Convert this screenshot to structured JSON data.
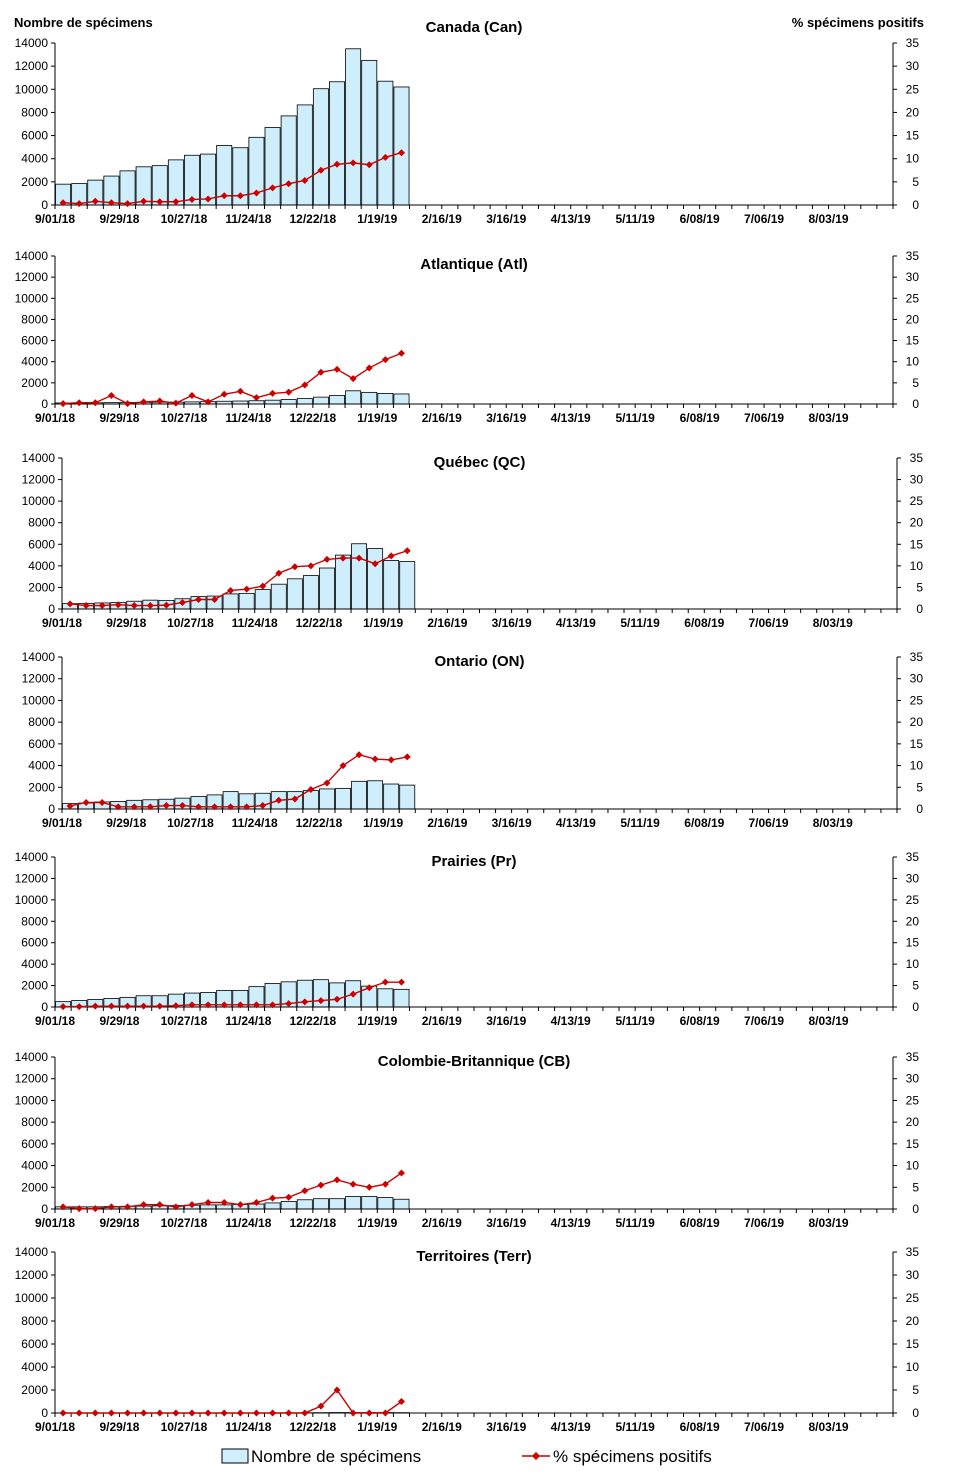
{
  "left_axis_label": "Nombre de spécimens",
  "right_axis_label": "% spécimens positifs",
  "legend": {
    "bars_label": "Nombre de spécimens",
    "line_label": "% spécimens positifs"
  },
  "colors": {
    "bar_fill": "#cfeefc",
    "bar_stroke": "#000000",
    "line": "#cc0000"
  },
  "chart_data": [
    {
      "type": "bar",
      "title": "Canada (Can)",
      "x_tick_labels": [
        "9/01/18",
        "9/29/18",
        "10/27/18",
        "11/24/18",
        "12/22/18",
        "1/19/19",
        "2/16/19",
        "3/16/19",
        "4/13/19",
        "5/11/19",
        "6/08/19",
        "7/06/19",
        "8/03/19"
      ],
      "y_ticks": [
        0,
        2000,
        4000,
        6000,
        8000,
        10000,
        12000,
        14000
      ],
      "y2_ticks": [
        0,
        5,
        10,
        15,
        20,
        25,
        30,
        35
      ],
      "ylim": [
        0,
        14000
      ],
      "y2lim": [
        0,
        35
      ],
      "weeks": 52,
      "series": [
        {
          "name": "Nombre de spécimens",
          "values": [
            1800,
            1850,
            2150,
            2500,
            2950,
            3300,
            3400,
            3900,
            4300,
            4400,
            5150,
            4950,
            5850,
            6700,
            7700,
            8650,
            10050,
            10650,
            13500,
            12500,
            10700,
            10200
          ]
        },
        {
          "name": "% spécimens positifs",
          "values": [
            0.5,
            0.3,
            0.8,
            0.5,
            0.3,
            0.8,
            0.7,
            0.7,
            1.2,
            1.3,
            2.0,
            2.0,
            2.6,
            3.7,
            4.6,
            5.3,
            7.5,
            8.8,
            9.1,
            8.7,
            10.3,
            11.3
          ]
        }
      ]
    },
    {
      "type": "bar",
      "title": "Atlantique (Atl)",
      "x_tick_labels": [
        "9/01/18",
        "9/29/18",
        "10/27/18",
        "11/24/18",
        "12/22/18",
        "1/19/19",
        "2/16/19",
        "3/16/19",
        "4/13/19",
        "5/11/19",
        "6/08/19",
        "7/06/19",
        "8/03/19"
      ],
      "y_ticks": [
        0,
        2000,
        4000,
        6000,
        8000,
        10000,
        12000,
        14000
      ],
      "y2_ticks": [
        0,
        5,
        10,
        15,
        20,
        25,
        30,
        35
      ],
      "ylim": [
        0,
        14000
      ],
      "y2lim": [
        0,
        35
      ],
      "weeks": 52,
      "series": [
        {
          "name": "Nombre de spécimens",
          "values": [
            100,
            110,
            120,
            130,
            150,
            160,
            170,
            180,
            200,
            220,
            260,
            280,
            310,
            360,
            420,
            520,
            650,
            800,
            1250,
            1100,
            1000,
            950
          ]
        },
        {
          "name": "% spécimens positifs",
          "values": [
            0.1,
            0.3,
            0.3,
            2.0,
            0.1,
            0.5,
            0.7,
            0.2,
            2.0,
            0.5,
            2.3,
            3.0,
            1.5,
            2.5,
            2.8,
            4.5,
            7.5,
            8.2,
            6.0,
            8.5,
            10.5,
            12.0
          ]
        }
      ]
    },
    {
      "type": "bar",
      "title": "Québec (QC)",
      "x_tick_labels": [
        "9/01/18",
        "9/29/18",
        "10/27/18",
        "11/24/18",
        "12/22/18",
        "1/19/19",
        "2/16/19",
        "3/16/19",
        "4/13/19",
        "5/11/19",
        "6/08/19",
        "7/06/19",
        "8/03/19"
      ],
      "y_ticks": [
        0,
        2000,
        4000,
        6000,
        8000,
        10000,
        12000,
        14000
      ],
      "y2_ticks": [
        0,
        5,
        10,
        15,
        20,
        25,
        30,
        35
      ],
      "ylim": [
        0,
        14000
      ],
      "y2lim": [
        0,
        35
      ],
      "weeks": 52,
      "series": [
        {
          "name": "Nombre de spécimens",
          "values": [
            500,
            520,
            560,
            600,
            720,
            820,
            800,
            950,
            1150,
            1200,
            1400,
            1450,
            1800,
            2300,
            2800,
            3100,
            3800,
            5000,
            6050,
            5600,
            4500,
            4400
          ]
        },
        {
          "name": "% spécimens positifs",
          "values": [
            1.2,
            0.8,
            0.8,
            1.0,
            0.8,
            0.8,
            0.9,
            1.5,
            2.2,
            2.2,
            4.3,
            4.6,
            5.3,
            8.3,
            9.8,
            10.0,
            11.5,
            11.8,
            11.8,
            10.5,
            12.3,
            13.5
          ]
        }
      ]
    },
    {
      "type": "bar",
      "title": "Ontario (ON)",
      "x_tick_labels": [
        "9/01/18",
        "9/29/18",
        "10/27/18",
        "11/24/18",
        "12/22/18",
        "1/19/19",
        "2/16/19",
        "3/16/19",
        "4/13/19",
        "5/11/19",
        "6/08/19",
        "7/06/19",
        "8/03/19"
      ],
      "y_ticks": [
        0,
        2000,
        4000,
        6000,
        8000,
        10000,
        12000,
        14000
      ],
      "y2_ticks": [
        0,
        5,
        10,
        15,
        20,
        25,
        30,
        35
      ],
      "ylim": [
        0,
        14000
      ],
      "y2lim": [
        0,
        35
      ],
      "weeks": 52,
      "series": [
        {
          "name": "Nombre de spécimens",
          "values": [
            500,
            550,
            650,
            700,
            800,
            850,
            900,
            1000,
            1150,
            1300,
            1600,
            1400,
            1450,
            1600,
            1600,
            1700,
            1850,
            1900,
            2550,
            2600,
            2300,
            2200
          ]
        },
        {
          "name": "% spécimens positifs",
          "values": [
            0.7,
            1.5,
            1.5,
            0.5,
            0.5,
            0.5,
            0.8,
            0.8,
            0.5,
            0.5,
            0.5,
            0.5,
            0.8,
            2.0,
            2.3,
            4.5,
            6.0,
            10.0,
            12.5,
            11.5,
            11.3,
            12.0
          ]
        }
      ]
    },
    {
      "type": "bar",
      "title": "Prairies (Pr)",
      "x_tick_labels": [
        "9/01/18",
        "9/29/18",
        "10/27/18",
        "11/24/18",
        "12/22/18",
        "1/19/19",
        "2/16/19",
        "3/16/19",
        "4/13/19",
        "5/11/19",
        "6/08/19",
        "7/06/19",
        "8/03/19"
      ],
      "y_ticks": [
        0,
        2000,
        4000,
        6000,
        8000,
        10000,
        12000,
        14000
      ],
      "y2_ticks": [
        0,
        5,
        10,
        15,
        20,
        25,
        30,
        35
      ],
      "ylim": [
        0,
        14000
      ],
      "y2lim": [
        0,
        35
      ],
      "weeks": 52,
      "series": [
        {
          "name": "Nombre de spécimens",
          "values": [
            500,
            600,
            700,
            800,
            900,
            1050,
            1050,
            1200,
            1300,
            1350,
            1550,
            1550,
            1900,
            2200,
            2350,
            2500,
            2550,
            2250,
            2450,
            1950,
            1700,
            1650
          ]
        },
        {
          "name": "% spécimens positifs",
          "values": [
            0.1,
            0.1,
            0.2,
            0.2,
            0.2,
            0.2,
            0.2,
            0.3,
            0.5,
            0.5,
            0.5,
            0.5,
            0.5,
            0.5,
            0.8,
            1.2,
            1.5,
            1.8,
            3.0,
            4.5,
            5.8,
            5.8
          ]
        }
      ]
    },
    {
      "type": "bar",
      "title": "Colombie-Britannique (CB)",
      "x_tick_labels": [
        "9/01/18",
        "9/29/18",
        "10/27/18",
        "11/24/18",
        "12/22/18",
        "1/19/19",
        "2/16/19",
        "3/16/19",
        "4/13/19",
        "5/11/19",
        "6/08/19",
        "7/06/19",
        "8/03/19"
      ],
      "y_ticks": [
        0,
        2000,
        4000,
        6000,
        8000,
        10000,
        12000,
        14000
      ],
      "y2_ticks": [
        0,
        5,
        10,
        15,
        20,
        25,
        30,
        35
      ],
      "ylim": [
        0,
        14000
      ],
      "y2lim": [
        0,
        35
      ],
      "weeks": 52,
      "series": [
        {
          "name": "Nombre de spécimens",
          "values": [
            200,
            200,
            200,
            230,
            250,
            270,
            290,
            320,
            350,
            380,
            380,
            420,
            460,
            560,
            700,
            850,
            950,
            950,
            1150,
            1150,
            1050,
            900
          ]
        },
        {
          "name": "% spécimens positifs",
          "values": [
            0.5,
            0.1,
            0.1,
            0.5,
            0.5,
            1.0,
            1.0,
            0.5,
            1.0,
            1.5,
            1.5,
            1.0,
            1.5,
            2.5,
            2.7,
            4.2,
            5.5,
            6.7,
            5.7,
            5.0,
            5.7,
            8.3
          ]
        }
      ]
    },
    {
      "type": "bar",
      "title": "Territoires (Terr)",
      "x_tick_labels": [
        "9/01/18",
        "9/29/18",
        "10/27/18",
        "11/24/18",
        "12/22/18",
        "1/19/19",
        "2/16/19",
        "3/16/19",
        "4/13/19",
        "5/11/19",
        "6/08/19",
        "7/06/19",
        "8/03/19"
      ],
      "y_ticks": [
        0,
        2000,
        4000,
        6000,
        8000,
        10000,
        12000,
        14000
      ],
      "y2_ticks": [
        0,
        5,
        10,
        15,
        20,
        25,
        30,
        35
      ],
      "ylim": [
        0,
        14000
      ],
      "y2lim": [
        0,
        35
      ],
      "weeks": 52,
      "series": [
        {
          "name": "Nombre de spécimens",
          "values": [
            10,
            10,
            10,
            10,
            10,
            10,
            10,
            10,
            10,
            10,
            10,
            10,
            10,
            10,
            20,
            20,
            30,
            40,
            40,
            40,
            40,
            30
          ]
        },
        {
          "name": "% spécimens positifs",
          "values": [
            0,
            0,
            0,
            0,
            0,
            0,
            0,
            0,
            0,
            0,
            0,
            0,
            0,
            0,
            0,
            0,
            1.5,
            5.0,
            0,
            0,
            0,
            2.5
          ]
        }
      ]
    }
  ]
}
